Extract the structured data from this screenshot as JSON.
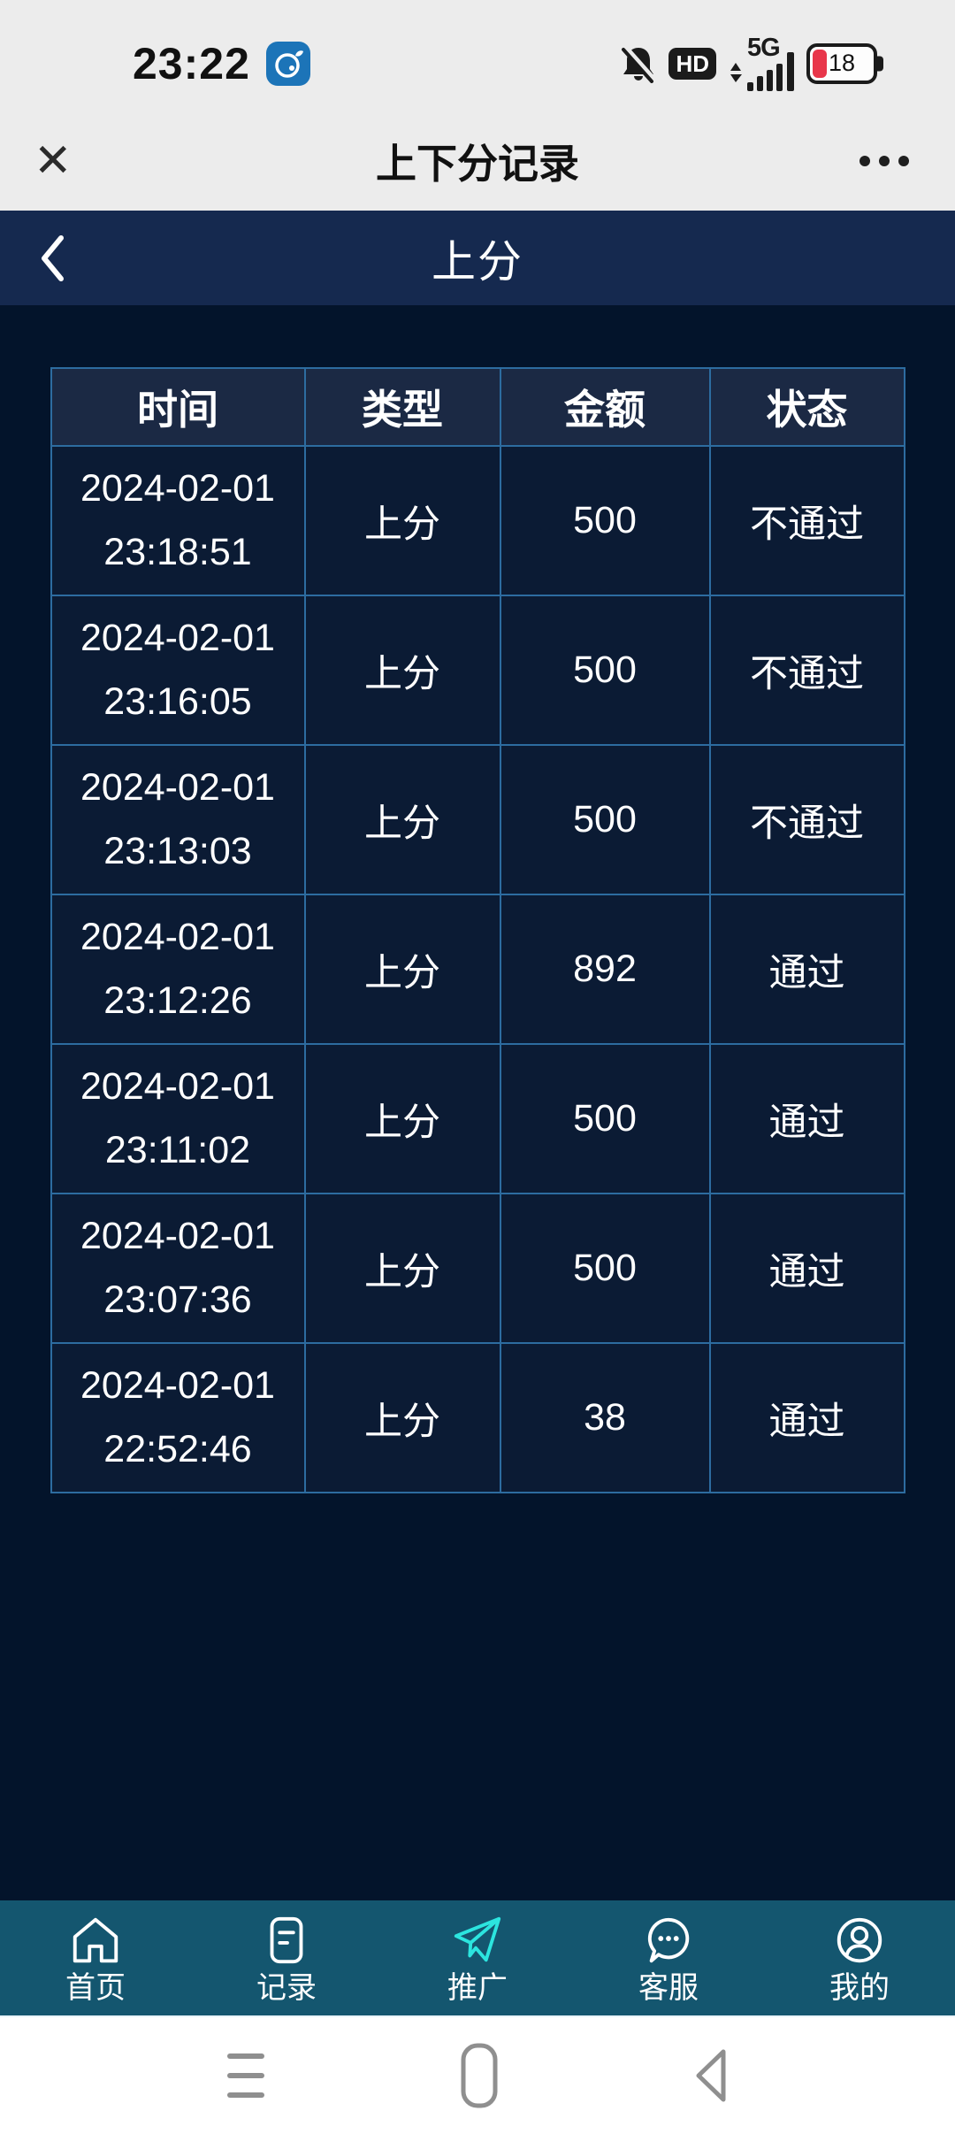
{
  "status_bar": {
    "time": "23:22",
    "hd_label": "HD",
    "network_label": "5G",
    "battery_percent": "18",
    "icons": [
      "app-icon",
      "notifications-muted-icon",
      "hd-icon",
      "signal-icon",
      "battery-icon"
    ]
  },
  "nav_bar": {
    "close_icon": "✕",
    "title": "上下分记录",
    "more_icon": "•••"
  },
  "page_header": {
    "back_icon": "‹",
    "title": "上分"
  },
  "table": {
    "headers": [
      "时间",
      "类型",
      "金额",
      "状态"
    ],
    "rows": [
      {
        "date": "2024-02-01",
        "time": "23:18:51",
        "type": "上分",
        "amount": "500",
        "status": "不通过"
      },
      {
        "date": "2024-02-01",
        "time": "23:16:05",
        "type": "上分",
        "amount": "500",
        "status": "不通过"
      },
      {
        "date": "2024-02-01",
        "time": "23:13:03",
        "type": "上分",
        "amount": "500",
        "status": "不通过"
      },
      {
        "date": "2024-02-01",
        "time": "23:12:26",
        "type": "上分",
        "amount": "892",
        "status": "通过"
      },
      {
        "date": "2024-02-01",
        "time": "23:11:02",
        "type": "上分",
        "amount": "500",
        "status": "通过"
      },
      {
        "date": "2024-02-01",
        "time": "23:07:36",
        "type": "上分",
        "amount": "500",
        "status": "通过"
      },
      {
        "date": "2024-02-01",
        "time": "22:52:46",
        "type": "上分",
        "amount": "38",
        "status": "通过"
      }
    ]
  },
  "tab_bar": {
    "items": [
      {
        "label": "首页",
        "icon": "home-icon",
        "active": false
      },
      {
        "label": "记录",
        "icon": "records-icon",
        "active": false
      },
      {
        "label": "推广",
        "icon": "paper-plane-icon",
        "active": true
      },
      {
        "label": "客服",
        "icon": "chat-icon",
        "active": false
      },
      {
        "label": "我的",
        "icon": "profile-icon",
        "active": false
      }
    ]
  },
  "android_nav": {
    "items": [
      "recents-icon",
      "home-pill-icon",
      "back-triangle-icon"
    ]
  },
  "colors": {
    "page_bg": "#03142b",
    "page_header_bg": "#15294f",
    "table_border": "#2d6ca0",
    "table_header_bg": "#1b2944",
    "table_cell_bg": "#0b1b34",
    "tab_bar_bg": "#14566f",
    "active_tab": "#2ce5df",
    "battery_low": "#e8364a",
    "app_icon_bg": "#1c74b8",
    "status_bar_bg": "#ececec"
  }
}
